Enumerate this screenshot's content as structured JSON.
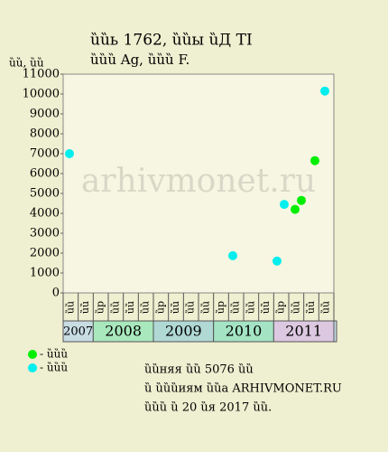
{
  "chart_data": {
    "type": "scatter",
    "title": "ȕȕь 1762, ȕȕы ȕД TI",
    "subtitle": "ȕȕȕ Ag, ȕȕȕ F.",
    "y_label": "ȕȕ, ȕȕ",
    "watermark": "arhivmonet.ru",
    "ylim": [
      0,
      11000
    ],
    "yticks": [
      0,
      1000,
      2000,
      3000,
      4000,
      5000,
      6000,
      7000,
      8000,
      9000,
      10000,
      11000
    ],
    "xlim": [
      0,
      18
    ],
    "categories": [
      "ȕȕ",
      "ȕȕ",
      "ȕр",
      "ȕȕ",
      "ȕȕ",
      "ȕȕ",
      "ȕр",
      "ȕȕ",
      "ȕȕ",
      "ȕȕ",
      "ȕр",
      "ȕȕ",
      "ȕȕ",
      "ȕȕ",
      "ȕр",
      "ȕȕ",
      "ȕȕ",
      "ȕȕ"
    ],
    "year_groups": [
      {
        "label": "2007",
        "span": 2,
        "color": "#c8dce4"
      },
      {
        "label": "2008",
        "span": 4,
        "color": "#a8e8bc"
      },
      {
        "label": "2009",
        "span": 4,
        "color": "#b0d8d4"
      },
      {
        "label": "2010",
        "span": 4,
        "color": "#a4e4c4"
      },
      {
        "label": "2011",
        "span": 4,
        "color": "#dcc8e0"
      }
    ],
    "series": [
      {
        "name": "- ȕȕȕ",
        "color": "#00ee00",
        "x": [
          15.42,
          15.84,
          16.74
        ],
        "values": [
          4200,
          4650,
          6650
        ]
      },
      {
        "name": "- ȕȕȕ",
        "color": "#00eeee",
        "x": [
          0.42,
          11.28,
          14.22,
          14.7,
          17.4
        ],
        "values": [
          7000,
          1870,
          1600,
          4450,
          10150
        ]
      }
    ],
    "footer": [
      "ȕȕняя ȕȕ 5076 ȕȕ",
      "ȕ ȕȕȕиям ȕȕа ARHIVMONET.RU",
      "ȕȕȕ ȕ 20 ȕя 2017 ȕȕ."
    ]
  }
}
